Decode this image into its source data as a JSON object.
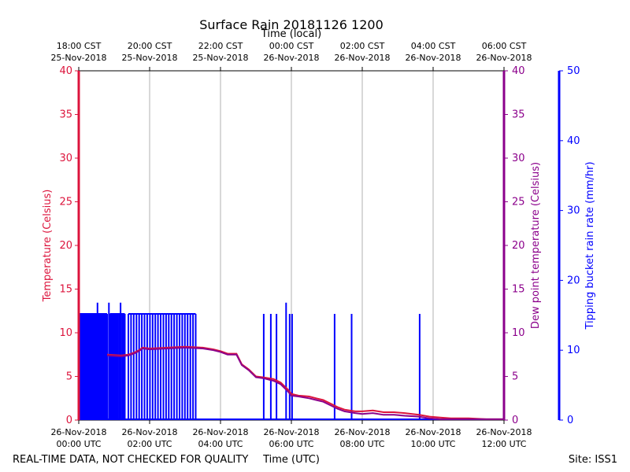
{
  "chart_data": {
    "type": "line",
    "title": "Surface Rain 20181126 1200",
    "top_axis_label": "Time (local)",
    "xlabel": "Time (UTC)",
    "footer_left": "REAL-TIME DATA, NOT CHECKED FOR QUALITY",
    "footer_right": "Site: ISS1",
    "x_range_hours": [
      0,
      12
    ],
    "utc_ticks": [
      {
        "h": 0,
        "date": "26-Nov-2018",
        "time": "00:00 UTC"
      },
      {
        "h": 2,
        "date": "26-Nov-2018",
        "time": "02:00 UTC"
      },
      {
        "h": 4,
        "date": "26-Nov-2018",
        "time": "04:00 UTC"
      },
      {
        "h": 6,
        "date": "26-Nov-2018",
        "time": "06:00 UTC"
      },
      {
        "h": 8,
        "date": "26-Nov-2018",
        "time": "08:00 UTC"
      },
      {
        "h": 10,
        "date": "26-Nov-2018",
        "time": "10:00 UTC"
      },
      {
        "h": 12,
        "date": "26-Nov-2018",
        "time": "12:00 UTC"
      }
    ],
    "local_ticks": [
      {
        "h": 0,
        "time": "18:00 CST",
        "date": "25-Nov-2018"
      },
      {
        "h": 2,
        "time": "20:00 CST",
        "date": "25-Nov-2018"
      },
      {
        "h": 4,
        "time": "22:00 CST",
        "date": "25-Nov-2018"
      },
      {
        "h": 6,
        "time": "00:00 CST",
        "date": "26-Nov-2018"
      },
      {
        "h": 8,
        "time": "02:00 CST",
        "date": "26-Nov-2018"
      },
      {
        "h": 10,
        "time": "04:00 CST",
        "date": "26-Nov-2018"
      },
      {
        "h": 12,
        "time": "06:00 CST",
        "date": "26-Nov-2018"
      }
    ],
    "y_left": {
      "label": "Temperature (Celsius)",
      "range": [
        0,
        40
      ],
      "ticks": [
        "0",
        "5",
        "10",
        "15",
        "20",
        "25",
        "30",
        "35",
        "40"
      ],
      "color": "#dc143c"
    },
    "y_right": {
      "label": "Dew point temperature (Celsius)",
      "range": [
        0,
        40
      ],
      "ticks": [
        "0",
        "5",
        "10",
        "15",
        "20",
        "25",
        "30",
        "35",
        "40"
      ],
      "color": "#8b008b"
    },
    "y_rain": {
      "label": "Tipping bucket rain rate (mm/hr)",
      "range": [
        0,
        50
      ],
      "ticks": [
        "0",
        "10",
        "20",
        "30",
        "40",
        "50"
      ],
      "color": "#0000ff"
    },
    "series": [
      {
        "name": "Temperature",
        "color": "#dc143c",
        "x": [
          0.8,
          1.2,
          1.4,
          1.55,
          1.7,
          1.8,
          2.0,
          2.5,
          3.0,
          3.5,
          3.8,
          4.0,
          4.2,
          4.45,
          4.6,
          4.8,
          5.0,
          5.2,
          5.5,
          5.7,
          5.9,
          6.0,
          6.2,
          6.5,
          6.7,
          6.9,
          7.1,
          7.3,
          7.5,
          7.8,
          8.0,
          8.3,
          8.6,
          8.9,
          9.2,
          9.6,
          9.9,
          10.2,
          10.5,
          11.0,
          11.5,
          12.0
        ],
        "values": [
          7.5,
          7.4,
          7.5,
          7.7,
          8.0,
          8.3,
          8.2,
          8.3,
          8.4,
          8.3,
          8.1,
          7.9,
          7.6,
          7.6,
          6.4,
          5.8,
          5.0,
          4.9,
          4.7,
          4.3,
          3.5,
          3.0,
          2.8,
          2.7,
          2.5,
          2.3,
          1.9,
          1.5,
          1.2,
          1.0,
          1.0,
          1.1,
          0.9,
          0.9,
          0.8,
          0.6,
          0.4,
          0.3,
          0.2,
          0.2,
          0.1,
          0.1
        ]
      },
      {
        "name": "Dew point",
        "color": "#8b008b",
        "x": [
          0.8,
          1.2,
          1.4,
          1.55,
          1.7,
          1.8,
          2.0,
          2.5,
          3.0,
          3.5,
          3.8,
          4.0,
          4.2,
          4.45,
          4.6,
          4.8,
          5.0,
          5.2,
          5.5,
          5.7,
          5.9,
          6.0,
          6.2,
          6.5,
          6.7,
          6.9,
          7.1,
          7.3,
          7.5,
          7.8,
          8.0,
          8.3,
          8.6,
          8.9,
          9.2,
          9.6,
          9.9,
          10.2,
          10.5,
          11.0,
          11.5,
          12.0
        ],
        "values": [
          7.4,
          7.3,
          7.4,
          7.6,
          7.9,
          8.2,
          8.1,
          8.2,
          8.3,
          8.2,
          8.0,
          7.8,
          7.5,
          7.5,
          6.3,
          5.7,
          4.9,
          4.8,
          4.5,
          4.1,
          3.3,
          2.8,
          2.7,
          2.5,
          2.3,
          2.1,
          1.7,
          1.3,
          1.0,
          0.8,
          0.7,
          0.8,
          0.6,
          0.6,
          0.5,
          0.4,
          0.2,
          0.1,
          0.1,
          0.1,
          0.1,
          0.1
        ]
      },
      {
        "name": "Rain rate",
        "color": "#0000ff",
        "type": "impulse",
        "spikes": [
          {
            "start": 0.0,
            "end": 0.8,
            "value": 15.2,
            "count": 28
          },
          {
            "start": 0.88,
            "end": 1.3,
            "value": 15.2,
            "count": 12
          },
          {
            "start": 1.4,
            "end": 3.3,
            "value": 15.2,
            "count": 26
          }
        ],
        "peaks": [
          {
            "x": 0.53,
            "value": 16.8
          },
          {
            "x": 0.85,
            "value": 16.8
          },
          {
            "x": 1.18,
            "value": 16.8
          },
          {
            "x": 5.85,
            "value": 16.8
          }
        ],
        "x": [
          5.22,
          5.42,
          5.58,
          5.95,
          6.02,
          7.22,
          7.7,
          9.62
        ],
        "values": [
          15.2,
          15.2,
          15.2,
          15.2,
          15.2,
          15.2,
          15.2,
          15.2
        ]
      }
    ]
  }
}
